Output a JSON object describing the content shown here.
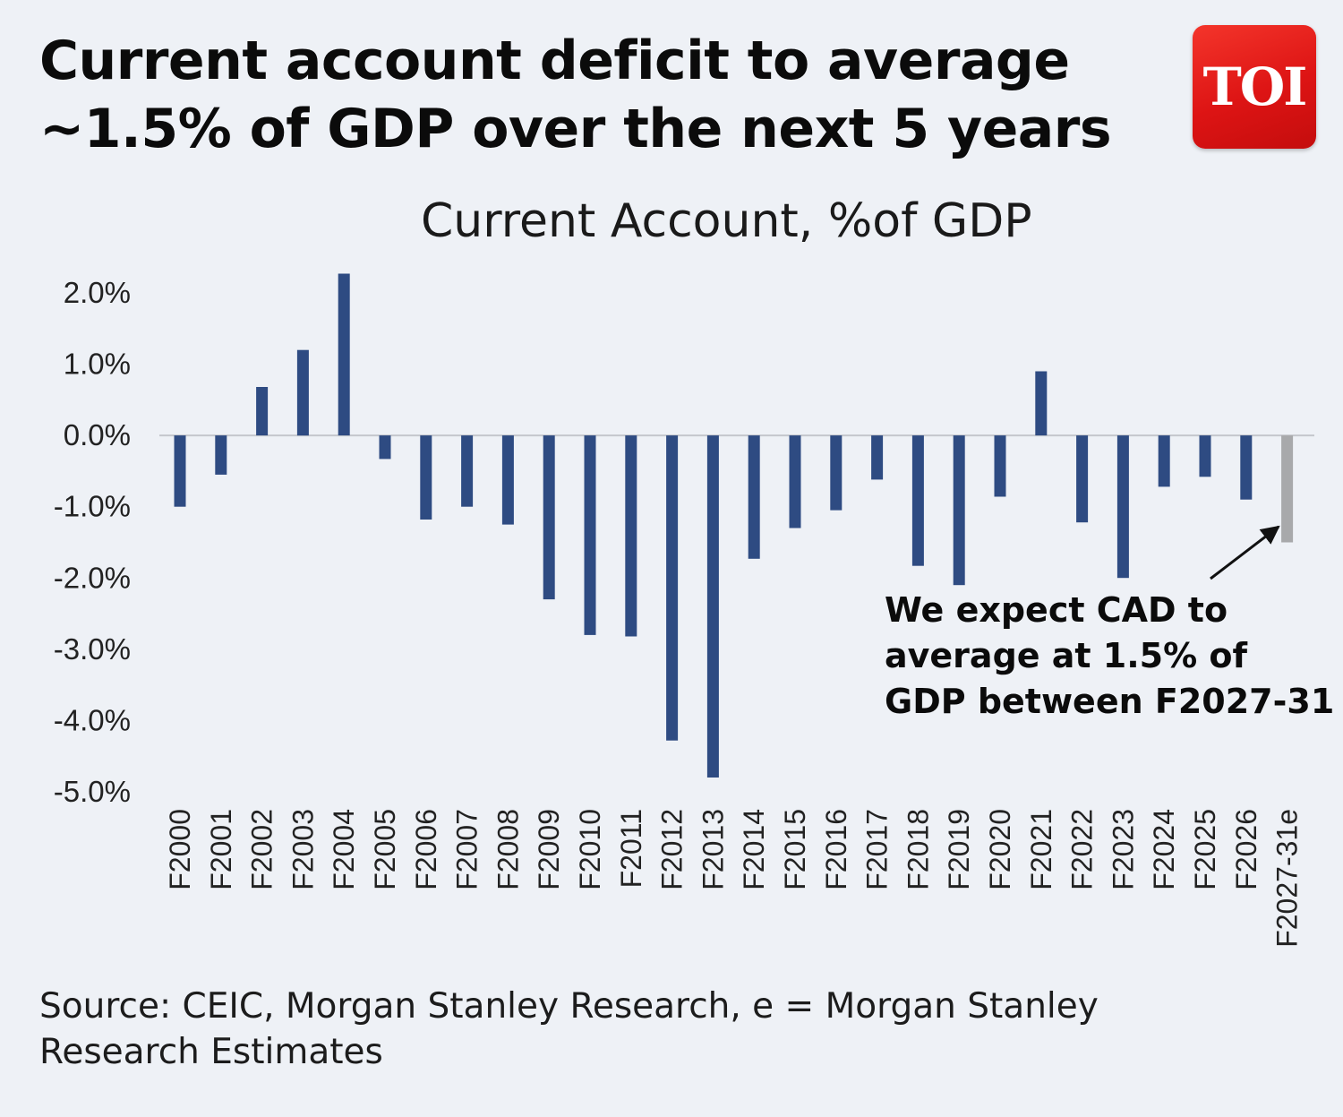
{
  "headline": {
    "line1": "Current account deficit to average",
    "line2": "~1.5% of GDP over the next 5 years"
  },
  "logo": {
    "text": "TOI"
  },
  "annotation": {
    "line1": "We expect CAD to",
    "line2": "average at 1.5% of",
    "line3": "GDP between F2027-31"
  },
  "source": {
    "line1": "Source: CEIC, Morgan Stanley Research, e = Morgan Stanley",
    "line2": "Research Estimates"
  },
  "colors": {
    "actual_bar": "#2e4b82",
    "estimate_bar": "#a8a9ab",
    "logo_red": "#e01a1a",
    "background": "#eef1f6"
  },
  "chart_data": {
    "type": "bar",
    "title": "Current Account, %of GDP",
    "xlabel": "",
    "ylabel": "",
    "ylim": [
      -5.0,
      2.0
    ],
    "yticks": [
      "2.0%",
      "1.0%",
      "0.0%",
      "-1.0%",
      "-2.0%",
      "-3.0%",
      "-4.0%",
      "-5.0%"
    ],
    "ytick_values": [
      2.0,
      1.0,
      0.0,
      -1.0,
      -2.0,
      -3.0,
      -4.0,
      -5.0
    ],
    "grid": false,
    "categories": [
      "F2000",
      "F2001",
      "F2002",
      "F2003",
      "F2004",
      "F2005",
      "F2006",
      "F2007",
      "F2008",
      "F2009",
      "F2010",
      "F2011",
      "F2012",
      "F2013",
      "F2014",
      "F2015",
      "F2016",
      "F2017",
      "F2018",
      "F2019",
      "F2020",
      "F2021",
      "F2022",
      "F2023",
      "F2024",
      "F2025",
      "F2026",
      "F2027-31e"
    ],
    "values": [
      -1.0,
      -0.55,
      0.68,
      1.2,
      2.27,
      -0.33,
      -1.18,
      -1.0,
      -1.25,
      -2.3,
      -2.8,
      -2.82,
      -4.28,
      -4.8,
      -1.73,
      -1.3,
      -1.05,
      -0.62,
      -1.83,
      -2.1,
      -0.86,
      0.9,
      -1.22,
      -2.0,
      -0.72,
      -0.58,
      -0.9,
      -1.5
    ],
    "estimate_categories": [
      "F2027-31e"
    ]
  }
}
